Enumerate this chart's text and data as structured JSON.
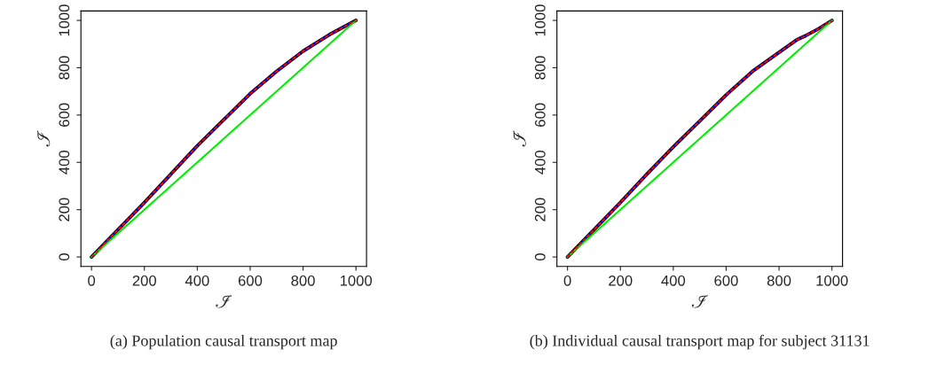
{
  "chart_data": [
    {
      "type": "line",
      "title": "(a) Population causal transport map",
      "xlabel": "ℐ",
      "ylabel": "ℐ",
      "xlim": [
        -40,
        1040
      ],
      "ylim": [
        -40,
        1040
      ],
      "xticks": [
        0,
        200,
        400,
        600,
        800,
        1000
      ],
      "yticks": [
        0,
        200,
        400,
        600,
        800,
        1000
      ],
      "grid": false,
      "legend": false,
      "series": [
        {
          "color": "#0000ff",
          "x": [
            0,
            100,
            200,
            300,
            400,
            500,
            600,
            700,
            800,
            900,
            1000
          ],
          "values": [
            0,
            115,
            230,
            350,
            470,
            580,
            690,
            785,
            870,
            940,
            1000
          ]
        },
        {
          "color": "#000000",
          "x": [
            0,
            100,
            200,
            300,
            400,
            500,
            600,
            700,
            800,
            900,
            1000
          ],
          "values": [
            0,
            115,
            230,
            350,
            470,
            580,
            690,
            785,
            870,
            940,
            1000
          ]
        },
        {
          "color": "#ff0000",
          "line_style": "dashed",
          "x": [
            0,
            100,
            200,
            300,
            400,
            500,
            600,
            700,
            800,
            900,
            1000
          ],
          "values": [
            0,
            115,
            230,
            350,
            470,
            580,
            690,
            785,
            870,
            940,
            1000
          ]
        },
        {
          "color": "#00ee00",
          "x": [
            0,
            1000
          ],
          "values": [
            0,
            1000
          ]
        }
      ]
    },
    {
      "type": "line",
      "title": "(b) Individual causal transport map for subject 31131",
      "xlabel": "ℐ",
      "ylabel": "ℐ",
      "xlim": [
        -40,
        1040
      ],
      "ylim": [
        -40,
        1040
      ],
      "xticks": [
        0,
        200,
        400,
        600,
        800,
        1000
      ],
      "yticks": [
        0,
        200,
        400,
        600,
        800,
        1000
      ],
      "grid": false,
      "legend": false,
      "series": [
        {
          "color": "#0000ff",
          "x": [
            0,
            100,
            200,
            300,
            400,
            500,
            600,
            700,
            800,
            870,
            900,
            950,
            1000
          ],
          "values": [
            0,
            115,
            230,
            350,
            465,
            575,
            685,
            785,
            865,
            920,
            935,
            965,
            1000
          ]
        },
        {
          "color": "#000000",
          "x": [
            0,
            100,
            200,
            300,
            400,
            500,
            600,
            700,
            800,
            870,
            900,
            950,
            1000
          ],
          "values": [
            0,
            115,
            230,
            350,
            465,
            575,
            685,
            785,
            865,
            920,
            935,
            965,
            1000
          ]
        },
        {
          "color": "#ff0000",
          "line_style": "dashed",
          "x": [
            0,
            100,
            200,
            300,
            400,
            500,
            600,
            700,
            800,
            870,
            900,
            950,
            1000
          ],
          "values": [
            0,
            115,
            230,
            350,
            465,
            575,
            685,
            785,
            865,
            920,
            935,
            965,
            1000
          ]
        },
        {
          "color": "#00ee00",
          "x": [
            0,
            1000
          ],
          "values": [
            0,
            1000
          ]
        }
      ]
    }
  ]
}
